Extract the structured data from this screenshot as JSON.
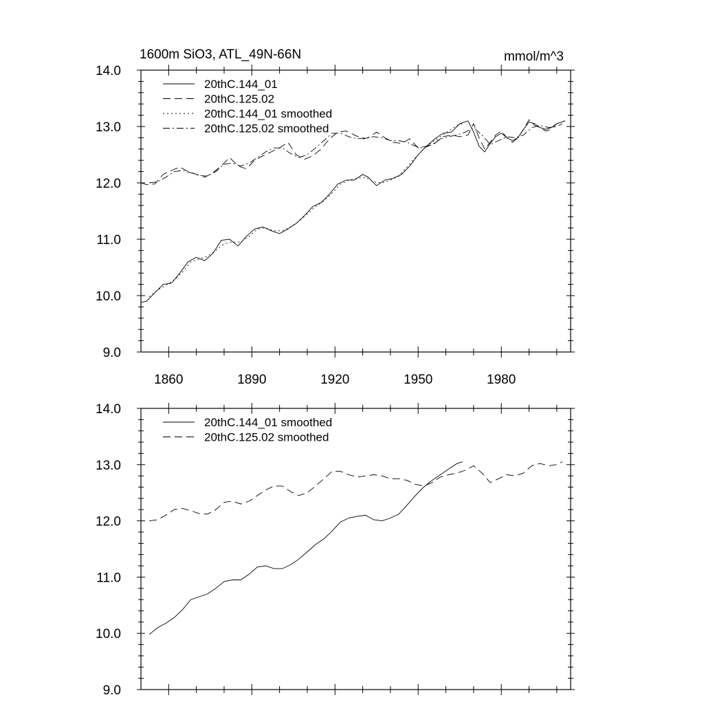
{
  "chart_data": [
    {
      "type": "line",
      "title": "1600m SiO3, ATL_49N-66N",
      "units": "mmol/m^3",
      "xlabel": "",
      "ylabel": "",
      "xlim": [
        1850,
        2005
      ],
      "ylim": [
        9.0,
        14.0
      ],
      "x_ticks": [
        "1860",
        "1890",
        "1920",
        "1950",
        "1980"
      ],
      "y_ticks": [
        "9.0",
        "10.0",
        "11.0",
        "12.0",
        "13.0",
        "14.0"
      ],
      "legend_position": "top-left",
      "series": [
        {
          "name": "20thC.144_01",
          "style": "solid",
          "x": [
            1850,
            1852,
            1855,
            1858,
            1861,
            1864,
            1867,
            1870,
            1873,
            1876,
            1879,
            1882,
            1885,
            1888,
            1891,
            1894,
            1897,
            1900,
            1903,
            1906,
            1909,
            1912,
            1915,
            1918,
            1921,
            1924,
            1927,
            1930,
            1932,
            1935,
            1938,
            1941,
            1944,
            1947,
            1950,
            1953,
            1956,
            1959,
            1962,
            1965,
            1968,
            1970,
            1972,
            1974,
            1976,
            1978,
            1980,
            1982,
            1984,
            1986,
            1988,
            1990,
            1992,
            1994,
            1996,
            1998,
            2000,
            2003
          ],
          "values": [
            9.88,
            9.9,
            10.05,
            10.2,
            10.22,
            10.4,
            10.6,
            10.68,
            10.62,
            10.75,
            10.98,
            11.0,
            10.88,
            11.05,
            11.18,
            11.22,
            11.15,
            11.1,
            11.18,
            11.28,
            11.42,
            11.58,
            11.65,
            11.8,
            11.98,
            12.05,
            12.05,
            12.15,
            12.1,
            11.95,
            12.05,
            12.08,
            12.15,
            12.3,
            12.5,
            12.65,
            12.78,
            12.88,
            12.9,
            13.05,
            13.1,
            12.9,
            12.65,
            12.55,
            12.7,
            12.82,
            12.88,
            12.8,
            12.75,
            12.8,
            12.95,
            13.08,
            13.05,
            12.98,
            12.95,
            12.98,
            13.05,
            13.1
          ]
        },
        {
          "name": "20thC.125.02",
          "style": "dashed",
          "x": [
            1850,
            1852,
            1855,
            1858,
            1861,
            1864,
            1867,
            1870,
            1873,
            1876,
            1879,
            1882,
            1885,
            1888,
            1891,
            1894,
            1897,
            1900,
            1903,
            1906,
            1909,
            1912,
            1915,
            1918,
            1921,
            1924,
            1927,
            1930,
            1932,
            1935,
            1938,
            1941,
            1944,
            1947,
            1950,
            1953,
            1956,
            1959,
            1962,
            1965,
            1968,
            1970,
            1972,
            1974,
            1976,
            1978,
            1980,
            1982,
            1984,
            1986,
            1988,
            1990,
            1992,
            1994,
            1996,
            1998,
            2000,
            2003
          ],
          "values": [
            12.0,
            11.97,
            11.98,
            12.15,
            12.22,
            12.28,
            12.2,
            12.15,
            12.1,
            12.18,
            12.3,
            12.45,
            12.3,
            12.25,
            12.4,
            12.48,
            12.55,
            12.62,
            12.72,
            12.5,
            12.42,
            12.48,
            12.6,
            12.78,
            12.9,
            12.92,
            12.85,
            12.78,
            12.8,
            12.9,
            12.8,
            12.72,
            12.7,
            12.78,
            12.62,
            12.65,
            12.7,
            12.82,
            12.85,
            12.82,
            12.85,
            13.05,
            12.8,
            12.6,
            12.72,
            12.85,
            12.92,
            12.8,
            12.72,
            12.8,
            12.95,
            13.12,
            13.02,
            12.98,
            12.92,
            12.95,
            13.05,
            13.1
          ]
        },
        {
          "name": "20thC.144_01 smoothed",
          "style": "dotted",
          "x": [
            1853,
            1856,
            1859,
            1862,
            1865,
            1868,
            1871,
            1874,
            1877,
            1880,
            1883,
            1886,
            1889,
            1892,
            1895,
            1898,
            1901,
            1904,
            1907,
            1910,
            1913,
            1916,
            1919,
            1922,
            1925,
            1928,
            1931,
            1934,
            1937,
            1940,
            1943,
            1946,
            1949,
            1952,
            1955,
            1958,
            1961,
            1964,
            1966
          ],
          "values": [
            9.98,
            10.1,
            10.18,
            10.28,
            10.42,
            10.6,
            10.65,
            10.7,
            10.8,
            10.92,
            10.95,
            10.95,
            11.05,
            11.18,
            11.2,
            11.15,
            11.15,
            11.22,
            11.32,
            11.45,
            11.58,
            11.68,
            11.82,
            11.98,
            12.05,
            12.08,
            12.1,
            12.02,
            12.0,
            12.05,
            12.12,
            12.28,
            12.45,
            12.6,
            12.72,
            12.82,
            12.92,
            13.02,
            13.05
          ]
        },
        {
          "name": "20thC.125.02 smoothed",
          "style": "dashdot",
          "x": [
            1853,
            1856,
            1859,
            1862,
            1865,
            1868,
            1871,
            1874,
            1877,
            1880,
            1883,
            1886,
            1889,
            1892,
            1895,
            1898,
            1901,
            1904,
            1907,
            1910,
            1913,
            1916,
            1919,
            1922,
            1925,
            1928,
            1931,
            1934,
            1937,
            1940,
            1943,
            1946,
            1949,
            1952,
            1955,
            1958,
            1961,
            1964,
            1967,
            1970,
            1973,
            1976,
            1979,
            1982,
            1985,
            1988,
            1991,
            1994,
            1997,
            2000,
            2002
          ],
          "values": [
            12.0,
            12.02,
            12.1,
            12.2,
            12.22,
            12.18,
            12.13,
            12.12,
            12.2,
            12.33,
            12.35,
            12.3,
            12.35,
            12.45,
            12.55,
            12.62,
            12.62,
            12.52,
            12.45,
            12.5,
            12.62,
            12.75,
            12.88,
            12.88,
            12.82,
            12.78,
            12.8,
            12.82,
            12.8,
            12.75,
            12.75,
            12.72,
            12.65,
            12.62,
            12.68,
            12.78,
            12.82,
            12.85,
            12.9,
            12.98,
            12.85,
            12.68,
            12.75,
            12.82,
            12.8,
            12.85,
            12.98,
            13.02,
            12.98,
            13.0,
            13.05
          ]
        }
      ]
    },
    {
      "type": "line",
      "title": "",
      "xlabel": "",
      "ylabel": "",
      "xlim": [
        1850,
        2005
      ],
      "ylim": [
        9.0,
        14.0
      ],
      "y_ticks": [
        "9.0",
        "10.0",
        "11.0",
        "12.0",
        "13.0",
        "14.0"
      ],
      "legend_position": "top-left",
      "series": [
        {
          "name": "20thC.144_01 smoothed",
          "style": "solid",
          "x": [
            1853,
            1856,
            1859,
            1862,
            1865,
            1868,
            1871,
            1874,
            1877,
            1880,
            1883,
            1886,
            1889,
            1892,
            1895,
            1898,
            1901,
            1904,
            1907,
            1910,
            1913,
            1916,
            1919,
            1922,
            1925,
            1928,
            1931,
            1934,
            1937,
            1940,
            1943,
            1946,
            1949,
            1952,
            1955,
            1958,
            1961,
            1964,
            1966
          ],
          "values": [
            9.98,
            10.1,
            10.18,
            10.28,
            10.42,
            10.6,
            10.65,
            10.7,
            10.8,
            10.92,
            10.95,
            10.95,
            11.05,
            11.18,
            11.2,
            11.15,
            11.15,
            11.22,
            11.32,
            11.45,
            11.58,
            11.68,
            11.82,
            11.98,
            12.05,
            12.08,
            12.1,
            12.02,
            12.0,
            12.05,
            12.12,
            12.28,
            12.45,
            12.6,
            12.72,
            12.82,
            12.92,
            13.02,
            13.05
          ]
        },
        {
          "name": "20thC.125.02 smoothed",
          "style": "dashed",
          "x": [
            1853,
            1856,
            1859,
            1862,
            1865,
            1868,
            1871,
            1874,
            1877,
            1880,
            1883,
            1886,
            1889,
            1892,
            1895,
            1898,
            1901,
            1904,
            1907,
            1910,
            1913,
            1916,
            1919,
            1922,
            1925,
            1928,
            1931,
            1934,
            1937,
            1940,
            1943,
            1946,
            1949,
            1952,
            1955,
            1958,
            1961,
            1964,
            1967,
            1970,
            1973,
            1976,
            1979,
            1982,
            1985,
            1988,
            1991,
            1994,
            1997,
            2000,
            2002
          ],
          "values": [
            12.0,
            12.02,
            12.1,
            12.2,
            12.22,
            12.18,
            12.13,
            12.12,
            12.2,
            12.33,
            12.35,
            12.3,
            12.35,
            12.45,
            12.55,
            12.62,
            12.62,
            12.52,
            12.45,
            12.5,
            12.62,
            12.75,
            12.88,
            12.88,
            12.82,
            12.78,
            12.8,
            12.82,
            12.8,
            12.75,
            12.75,
            12.72,
            12.65,
            12.62,
            12.68,
            12.78,
            12.82,
            12.85,
            12.9,
            12.98,
            12.85,
            12.68,
            12.75,
            12.82,
            12.8,
            12.85,
            12.98,
            13.02,
            12.98,
            13.0,
            13.05
          ]
        }
      ]
    }
  ]
}
